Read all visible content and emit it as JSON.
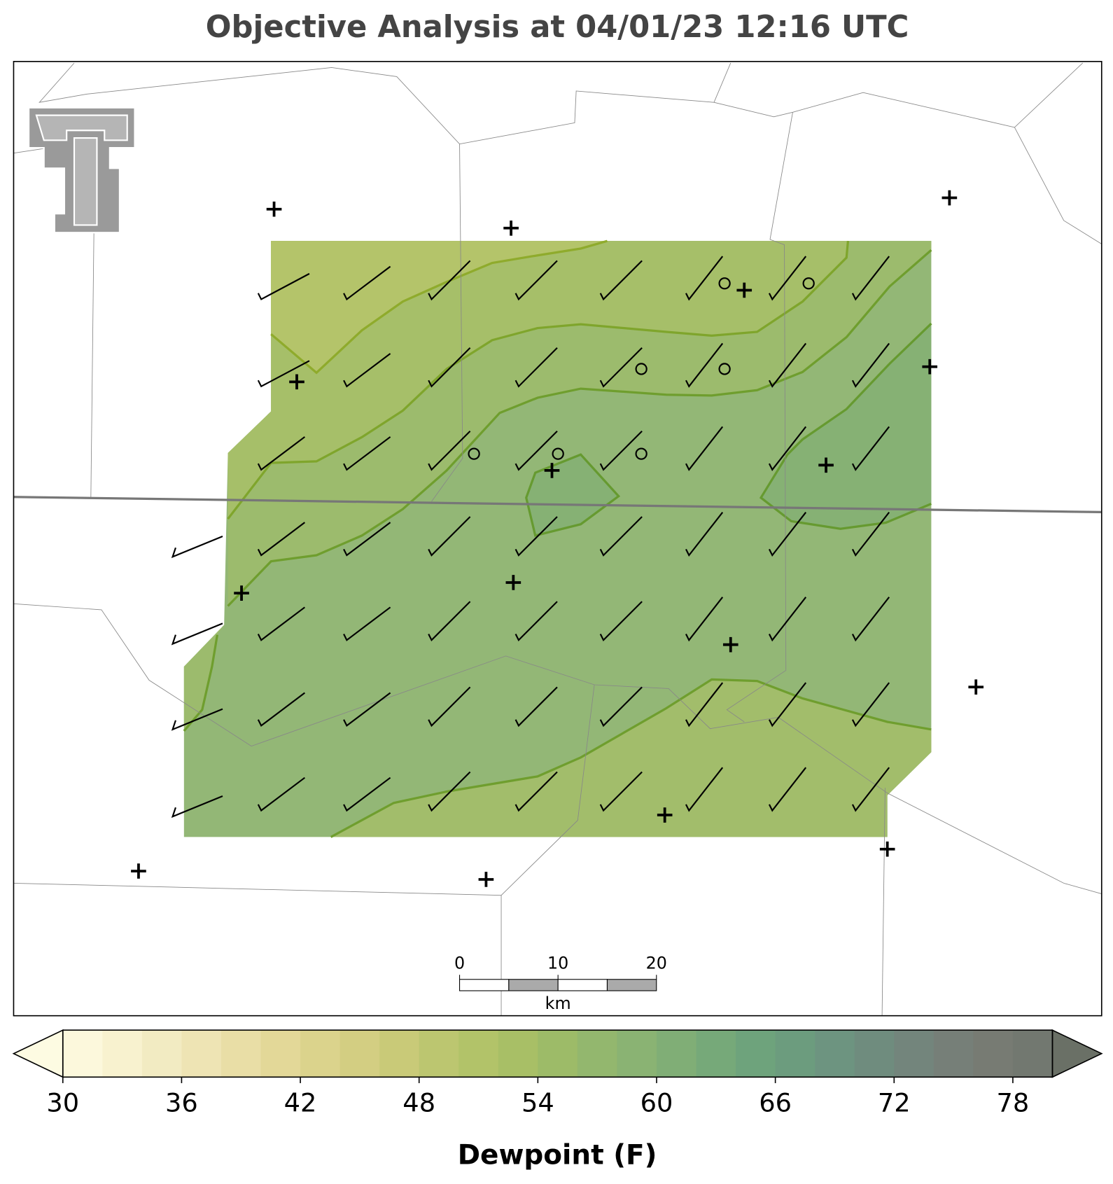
{
  "title": "Objective Analysis at 04/01/23 12:16 UTC",
  "colorbar": {
    "label": "Dewpoint (F)",
    "lim": [
      30,
      80
    ],
    "ticks": [
      30,
      36,
      42,
      48,
      54,
      60,
      66,
      72,
      78
    ],
    "colors": [
      "#fcf8dc",
      "#f8f2cf",
      "#f2ebc2",
      "#eee4b4",
      "#e9dea6",
      "#e3d898",
      "#dbd38c",
      "#d3ce82",
      "#c9ca78",
      "#bcc670",
      "#b2c369",
      "#a8bf66",
      "#9dbb68",
      "#93b76e",
      "#8ab373",
      "#80ae76",
      "#76a979",
      "#6ea37c",
      "#6c9c7e",
      "#6d9480",
      "#6f8c7e",
      "#73857c",
      "#767f78",
      "#777b73",
      "#727870"
    ],
    "under_color": "#fdfbe2",
    "over_color": "#6a7066"
  },
  "scale_bar": {
    "ticks": [
      0,
      10,
      20
    ],
    "unit": "km"
  }
}
